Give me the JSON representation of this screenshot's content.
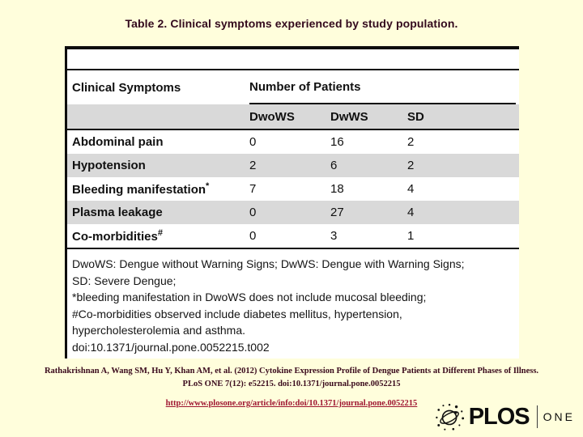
{
  "slide": {
    "title": "Table 2. Clinical symptoms experienced by study population.",
    "background_color": "#FFFEDC",
    "title_color": "#33091D"
  },
  "table": {
    "header": {
      "symptom_col": "Clinical Symptoms",
      "group_col": "Number of Patients"
    },
    "columns": [
      "DwoWS",
      "DwWS",
      "SD"
    ],
    "rows": [
      {
        "label": "Abdominal pain",
        "sup": "",
        "values": [
          "0",
          "16",
          "2"
        ]
      },
      {
        "label": "Hypotension",
        "sup": "",
        "values": [
          "2",
          "6",
          "2"
        ]
      },
      {
        "label": "Bleeding manifestation",
        "sup": "*",
        "values": [
          "7",
          "18",
          "4"
        ]
      },
      {
        "label": "Plasma leakage",
        "sup": "",
        "values": [
          "0",
          "27",
          "4"
        ]
      },
      {
        "label": "Co-morbidities",
        "sup": "#",
        "values": [
          "0",
          "3",
          "1"
        ]
      }
    ],
    "row_stripe_color": "#D9D9D9",
    "footnote_lines": [
      "DwoWS: Dengue without Warning Signs; DwWS: Dengue with Warning Signs;",
      "SD: Severe Dengue;",
      "*bleeding manifestation in DwoWS does not include mucosal bleeding;",
      "#Co-morbidities observed include diabetes mellitus, hypertension,",
      "hypercholesterolemia and asthma.",
      "doi:10.1371/journal.pone.0052215.t002"
    ]
  },
  "chart_data": {
    "type": "table",
    "title": "Table 2. Clinical symptoms experienced by study population.",
    "column_group": "Number of Patients",
    "categories": [
      "DwoWS",
      "DwWS",
      "SD"
    ],
    "series": [
      {
        "name": "Abdominal pain",
        "values": [
          0,
          16,
          2
        ]
      },
      {
        "name": "Hypotension",
        "values": [
          2,
          6,
          2
        ]
      },
      {
        "name": "Bleeding manifestation*",
        "values": [
          7,
          18,
          4
        ]
      },
      {
        "name": "Plasma leakage",
        "values": [
          0,
          27,
          4
        ]
      },
      {
        "name": "Co-morbidities#",
        "values": [
          0,
          3,
          1
        ]
      }
    ]
  },
  "citation": {
    "line1": "Rathakrishnan A, Wang SM, Hu Y, Khan AM, et al. (2012) Cytokine Expression Profile of Dengue Patients at Different Phases of Illness.",
    "line2": "PLoS ONE 7(12): e52215. doi:10.1371/journal.pone.0052215",
    "link": "http://www.plosone.org/article/info:doi/10.1371/journal.pone.0052215",
    "text_color": "#3A0A1C",
    "link_color": "#9E1430"
  },
  "logo": {
    "brand": "PLOS",
    "journal": "ONE",
    "globe_icon": "plos-globe-icon",
    "color": "#0d0d0d"
  }
}
